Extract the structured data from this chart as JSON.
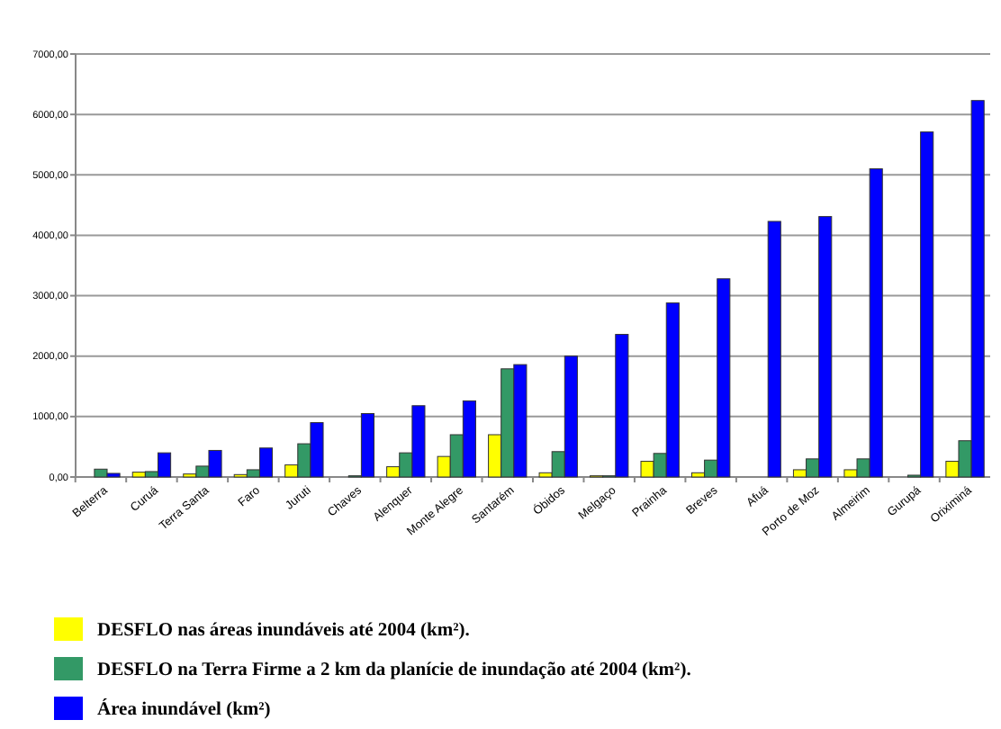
{
  "chart_data": {
    "type": "bar",
    "categories": [
      "Belterra",
      "Curuá",
      "Terra Santa",
      "Faro",
      "Juruti",
      "Chaves",
      "Alenquer",
      "Monte Alegre",
      "Santarém",
      "Óbidos",
      "Melgaço",
      "Prainha",
      "Breves",
      "Afuá",
      "Porto de Moz",
      "Almeirim",
      "Gurupá",
      "Oriximiná"
    ],
    "series": [
      {
        "name": "DESFLO nas áreas inundáveis até 2004 (km²).",
        "color": "#ffff00",
        "values": [
          null,
          80,
          50,
          40,
          200,
          0,
          170,
          340,
          700,
          70,
          20,
          260,
          70,
          0,
          120,
          120,
          null,
          260
        ]
      },
      {
        "name": "DESFLO na Terra Firme a 2 km da planície de inundação até 2004 (km²).",
        "color": "#339966",
        "values": [
          130,
          90,
          180,
          120,
          550,
          20,
          400,
          700,
          1790,
          420,
          20,
          390,
          280,
          0,
          300,
          300,
          30,
          600
        ]
      },
      {
        "name": "Área inundável (km²)",
        "color": "#0000ff",
        "values": [
          60,
          400,
          440,
          480,
          900,
          1050,
          1180,
          1260,
          1860,
          2000,
          2360,
          2880,
          3280,
          4230,
          4310,
          5100,
          5710,
          6230
        ]
      }
    ],
    "ylim": [
      0,
      7000
    ],
    "yticks": [
      {
        "value": 0,
        "label": "0,00"
      },
      {
        "value": 1000,
        "label": "1000,00"
      },
      {
        "value": 2000,
        "label": "2000,00"
      },
      {
        "value": 3000,
        "label": "3000,00"
      },
      {
        "value": 4000,
        "label": "4000,00"
      },
      {
        "value": 5000,
        "label": "5000,00"
      },
      {
        "value": 6000,
        "label": "6000,00"
      },
      {
        "value": 7000,
        "label": "7000,00"
      }
    ],
    "grid": "y",
    "legend": "bottom"
  }
}
